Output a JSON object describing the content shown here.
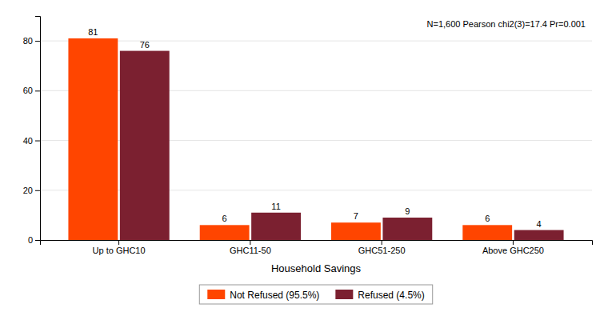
{
  "chart_data": {
    "type": "bar",
    "xlabel": "Household Savings",
    "annotation": "N=1,600  Pearson chi2(3)=17.4   Pr=0.001",
    "categories": [
      "Up to GHC10",
      "GHC11-50",
      "GHC51-250",
      "Above GHC250"
    ],
    "series": [
      {
        "name": "Not Refused (95.5%)",
        "color": "#FF4500",
        "values": [
          81,
          6,
          7,
          6
        ]
      },
      {
        "name": "Refused (4.5%)",
        "color": "#7B2030",
        "values": [
          76,
          11,
          9,
          4
        ]
      }
    ],
    "ylim": [
      0,
      90
    ],
    "yticks": [
      0,
      20,
      40,
      60,
      80
    ],
    "grid": true,
    "legend": "bottom",
    "data_labels": true
  }
}
